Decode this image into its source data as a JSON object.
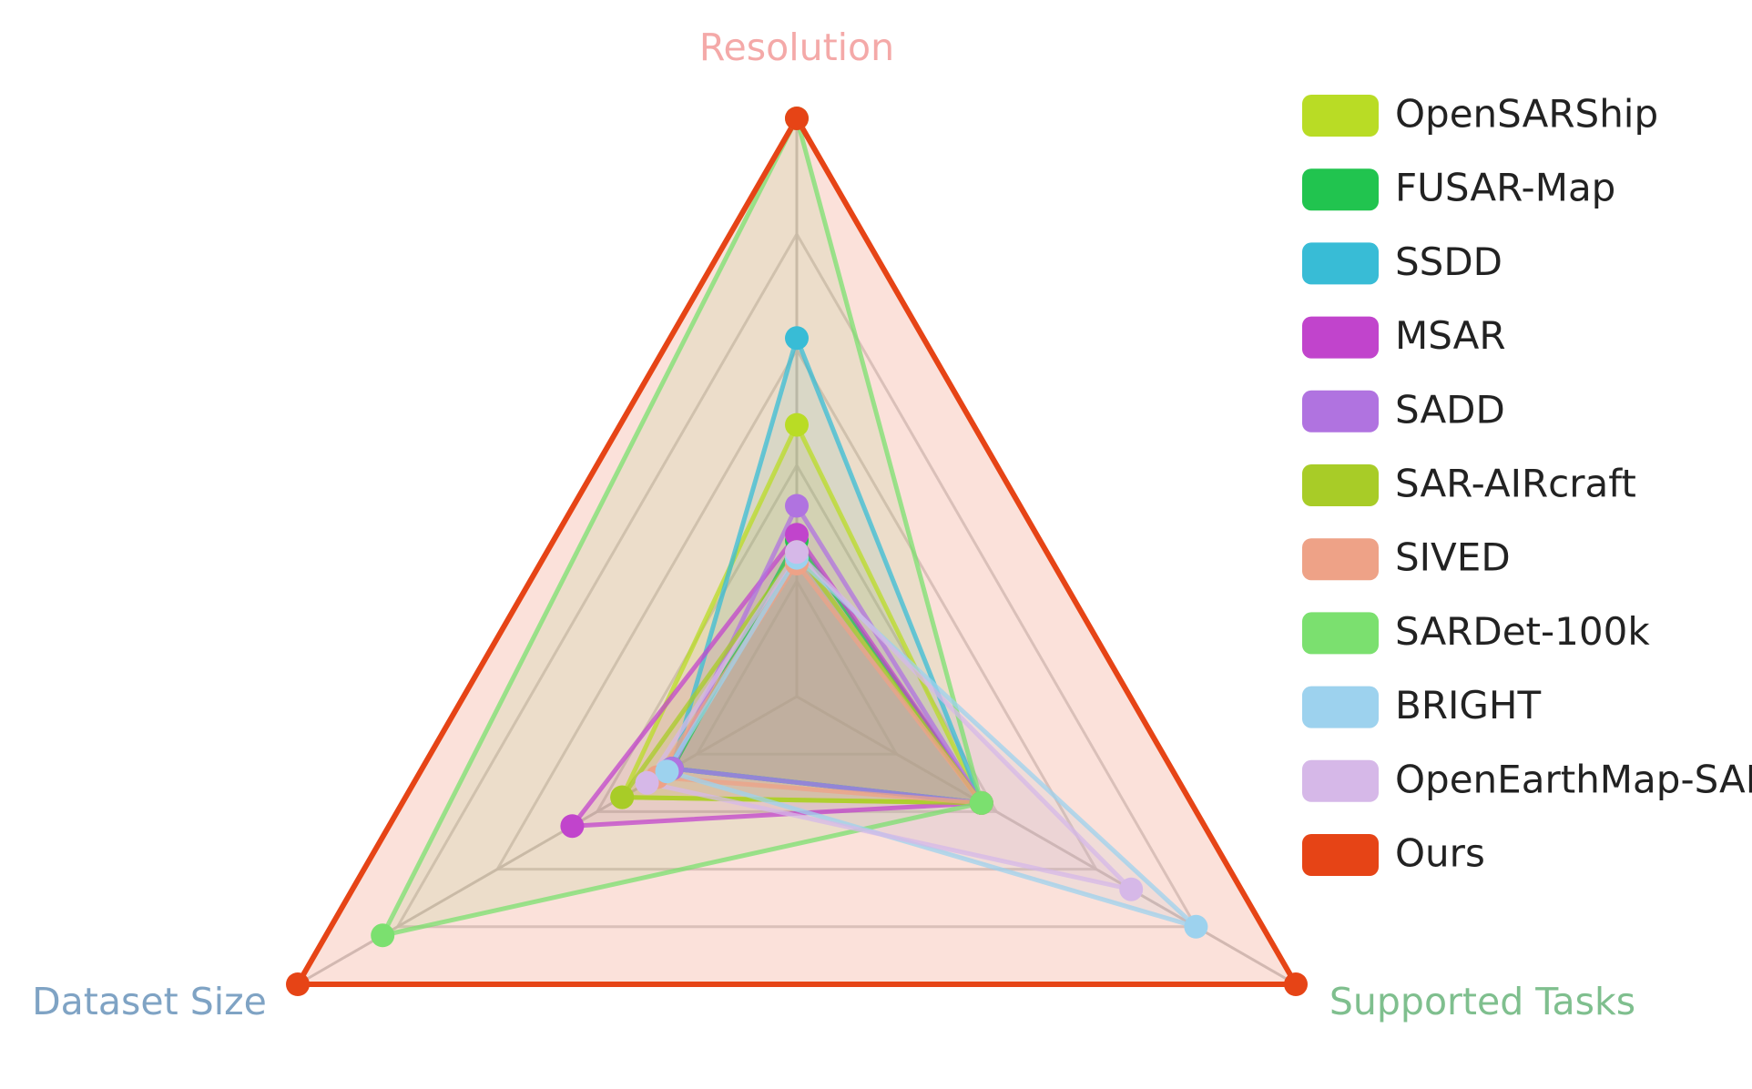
{
  "chart_data": {
    "type": "radar",
    "axes": [
      {
        "name": "Resolution",
        "color": "#f4a9a8"
      },
      {
        "name": "Supported Tasks",
        "color": "#7fbf8e"
      },
      {
        "name": "Dataset Size",
        "color": "#7fa3c4"
      }
    ],
    "range": [
      0,
      1
    ],
    "grid_levels": [
      0.2,
      0.4,
      0.6,
      0.8,
      1.0
    ],
    "grid": true,
    "legend_position": "right",
    "series": [
      {
        "name": "OpenSARShip",
        "color": "#b9dc25",
        "values": [
          0.47,
          0.37,
          0.35
        ]
      },
      {
        "name": "FUSAR-Map",
        "color": "#21c44f",
        "values": [
          0.27,
          0.37,
          0.25
        ]
      },
      {
        "name": "SSDD",
        "color": "#38bcd6",
        "values": [
          0.62,
          0.37,
          0.25
        ]
      },
      {
        "name": "MSAR",
        "color": "#c144cc",
        "values": [
          0.28,
          0.37,
          0.45
        ]
      },
      {
        "name": "SADD",
        "color": "#b073e0",
        "values": [
          0.33,
          0.37,
          0.25
        ]
      },
      {
        "name": "SAR-AIRcraft",
        "color": "#a8cc27",
        "values": [
          0.25,
          0.37,
          0.35
        ]
      },
      {
        "name": "SIVED",
        "color": "#eea287",
        "values": [
          0.23,
          0.37,
          0.28
        ]
      },
      {
        "name": "SARDet-100k",
        "color": "#7be06f",
        "values": [
          1.0,
          0.37,
          0.83
        ]
      },
      {
        "name": "BRIGHT",
        "color": "#9dd2ee",
        "values": [
          0.24,
          0.8,
          0.26
        ]
      },
      {
        "name": "OpenEarthMap-SAR",
        "color": "#d6b8e8",
        "values": [
          0.25,
          0.67,
          0.3
        ]
      },
      {
        "name": "Ours",
        "color": "#e64416",
        "values": [
          1.0,
          1.0,
          1.0
        ]
      }
    ]
  }
}
